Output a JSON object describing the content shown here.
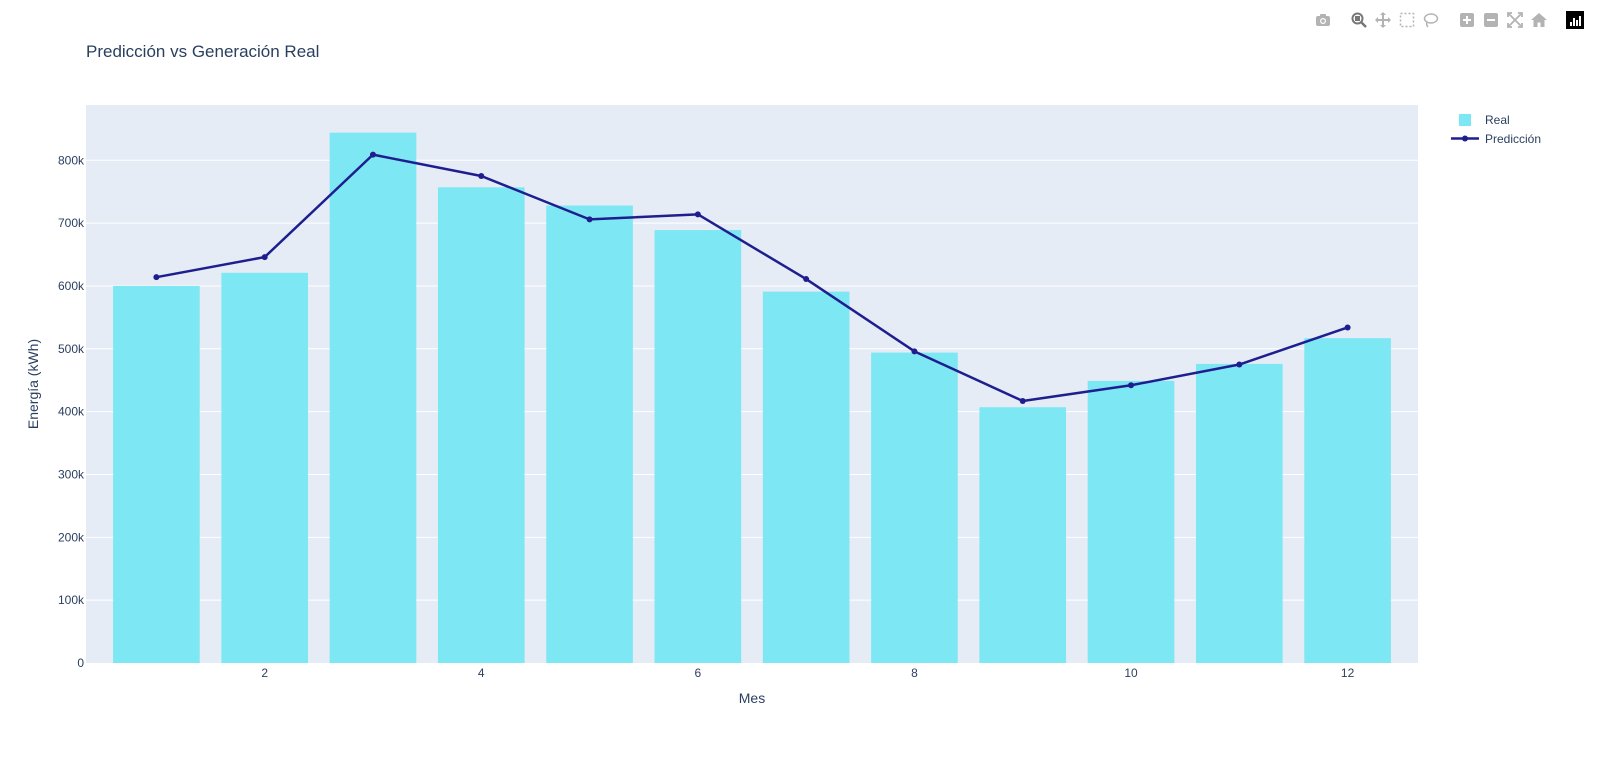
{
  "modebar": {
    "icons": [
      "camera-icon",
      "zoom-icon",
      "pan-icon",
      "box-select-icon",
      "lasso-select-icon",
      "zoom-in-icon",
      "zoom-out-icon",
      "autoscale-icon",
      "reset-axes-icon",
      "plotly-logo-icon"
    ]
  },
  "colors": {
    "plot_bg": "#e5ecf6",
    "bar": "#7de8f4",
    "line": "#1e1e8f",
    "text": "#2a3f5f",
    "grid": "#ffffff",
    "icon": "#b3b3b3",
    "icon_active": "#777777"
  },
  "chart_data": {
    "type": "bar",
    "title": "Predicción vs Generación Real",
    "xlabel": "Mes",
    "ylabel": "Energía (kWh)",
    "x": [
      1,
      2,
      3,
      4,
      5,
      6,
      7,
      8,
      9,
      10,
      11,
      12
    ],
    "xticks": [
      2,
      4,
      6,
      8,
      10,
      12
    ],
    "xtick_labels": [
      "2",
      "4",
      "6",
      "8",
      "10",
      "12"
    ],
    "xlim": [
      0.35,
      12.65
    ],
    "yticks": [
      0,
      100000,
      200000,
      300000,
      400000,
      500000,
      600000,
      700000,
      800000
    ],
    "ytick_labels": [
      "0",
      "100k",
      "200k",
      "300k",
      "400k",
      "500k",
      "600k",
      "700k",
      "800k"
    ],
    "ylim": [
      0,
      888000
    ],
    "grid": true,
    "legend_position": "top-right",
    "series": [
      {
        "name": "Real",
        "type": "bar",
        "values": [
          600000,
          621000,
          844000,
          757000,
          728000,
          689000,
          591000,
          494000,
          407000,
          449000,
          476000,
          517000
        ]
      },
      {
        "name": "Predicción",
        "type": "line",
        "values": [
          614000,
          646000,
          809000,
          775000,
          706000,
          714000,
          611000,
          496000,
          417000,
          442000,
          475000,
          534000
        ]
      }
    ]
  }
}
